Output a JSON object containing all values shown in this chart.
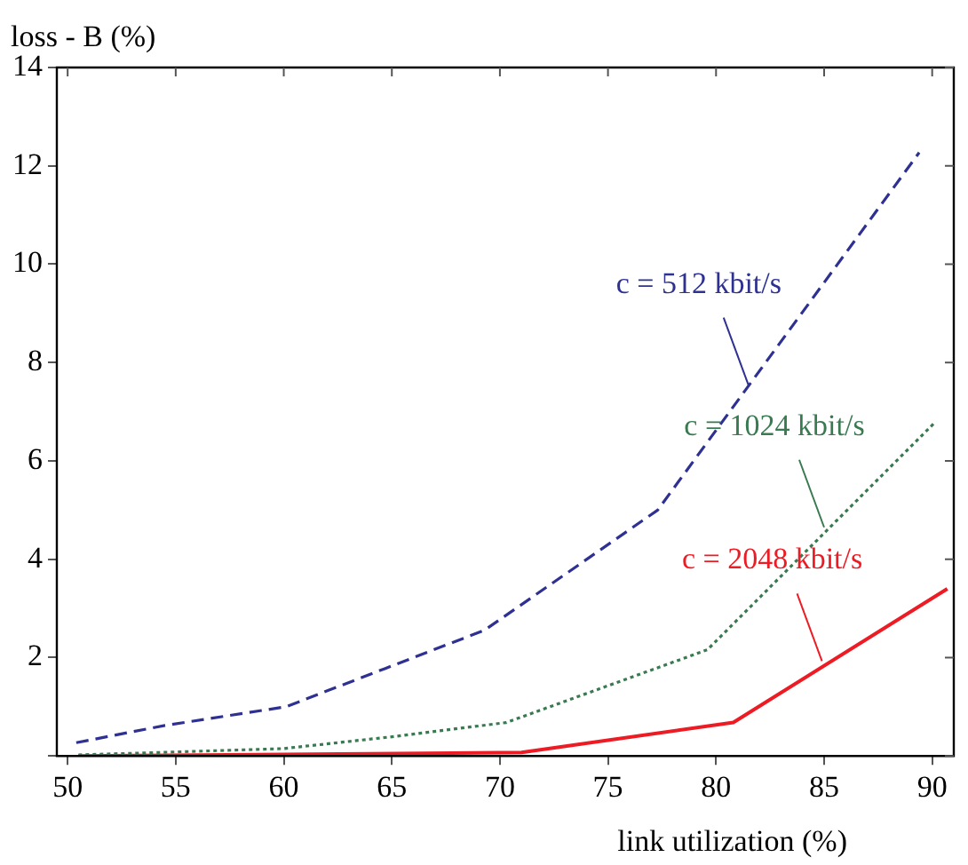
{
  "chart_data": {
    "type": "line",
    "xlabel": "link utilization (%)",
    "ylabel": "loss - B (%)",
    "xlim": [
      49.5,
      91
    ],
    "xticks": [
      50,
      55,
      60,
      65,
      70,
      75,
      80,
      85,
      90
    ],
    "ylim": [
      0,
      14
    ],
    "yticks": [
      {
        "value": 0,
        "label": null
      },
      2,
      4,
      6,
      8,
      10,
      12,
      14
    ],
    "grid": false,
    "legend": false,
    "marker": "none",
    "series": [
      {
        "color": "#2e3192",
        "line_style": "dashed",
        "x": [
          50.4,
          54.5,
          60.1,
          64.7,
          69.3,
          77.3,
          89.4
        ],
        "values": [
          0.27,
          0.62,
          1.0,
          1.78,
          2.56,
          5.0,
          12.27
        ]
      },
      {
        "color": "#3a7a50",
        "line_style": "dotted",
        "x": [
          50.5,
          60,
          65,
          70.3,
          79.6,
          90.1
        ],
        "values": [
          0.02,
          0.15,
          0.39,
          0.68,
          2.16,
          6.77
        ]
      },
      {
        "color": "#ed1c24",
        "line_style": "solid",
        "x": [
          50.5,
          71,
          80.8,
          90.7
        ],
        "values": [
          0,
          0.07,
          0.68,
          3.4
        ]
      }
    ],
    "annotations": [
      {
        "text": "c = 512 kbit/s",
        "x": 81.5,
        "y": 7.54
      },
      {
        "text": "c = 1024 kbit/s",
        "x": 85,
        "y": 4.65
      },
      {
        "text": "c = 2048 kbit/s",
        "x": 84.9,
        "y": 1.93
      }
    ]
  }
}
